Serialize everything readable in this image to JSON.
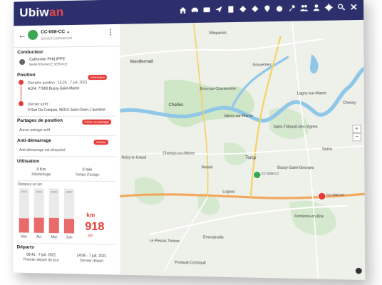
{
  "app": {
    "brand_main": "Ubiw",
    "brand_accent": "an"
  },
  "toolbar": {
    "icons": [
      "home-icon",
      "car-icon",
      "card-icon",
      "send-icon",
      "document-icon",
      "diamond-icon",
      "route-icon",
      "pin-icon",
      "alarm-icon",
      "wrench-icon",
      "users-icon",
      "person-icon",
      "gear-icon",
      "search-icon",
      "close-icon"
    ]
  },
  "vehicle": {
    "name": "CC-008-CC",
    "dropdown": "⌄",
    "service": "Service commercial"
  },
  "driver": {
    "heading": "Conducteur",
    "name": "Catherine PHILIPPE",
    "service": "MAINTENANCE SERVICE"
  },
  "position": {
    "heading": "Position",
    "history_button": "Historique",
    "last_label": "Dernière position : 15:26 - 7 juil. 2021",
    "last_address": "A104, 77600 Bussy-Saint-Martin",
    "stop_label": "Dernier arrêt :",
    "stop_address": "9 Rue Du Compas, 95310 Saint-Ouen-L'aumône"
  },
  "sharing": {
    "heading": "Partages de position",
    "button": "Créer un partage",
    "status": "Aucun partage actif"
  },
  "anti_start": {
    "heading": "Anti-démarrage",
    "badge": "Activer",
    "status": "Anti-démarrage est désactivé"
  },
  "usage": {
    "heading": "Utilisation",
    "km": "0 Km",
    "km_label": "Kilométrage",
    "min": "0 min",
    "min_label": "Temps d'usage"
  },
  "distance": {
    "label": "Distance en km",
    "bars": [
      {
        "month": "Mar",
        "value": "3021",
        "level": 0.32
      },
      {
        "month": "Avr",
        "value": "3343",
        "level": 0.34
      },
      {
        "month": "Mai",
        "value": "5353",
        "level": 0.34
      },
      {
        "month": "Juin",
        "value": "3857",
        "level": 0.32
      }
    ],
    "unit": "km",
    "current_value": "918",
    "current_month": "juil"
  },
  "departures": {
    "heading": "Départs",
    "first_time": "08:41 - 7 juil. 2021",
    "first_label": "Premier départ du jour",
    "last_time": "14:06 - 7 juil. 2021",
    "last_label": "Dernier départ"
  },
  "map": {
    "labels": {
      "montfermeil": "Montfermeil",
      "chelles": "Chelles",
      "brou": "Brou-sur-Chantereine",
      "vaires": "Vaires-sur-Marne",
      "torcy": "Torcy",
      "noisiel": "Noisiel",
      "champs": "Champs-sur-Marne",
      "lognes": "Lognes",
      "emerainville": "Emerainville",
      "plessis": "Le Plessis-Trévise",
      "pontault": "Pontault-Combault",
      "bussy": "Bussy-Saint-Georges",
      "stthibault": "Saint-Thibault-des-Vignes",
      "chessy": "Chessy",
      "ferrieres": "Ferrières-en-Brie",
      "gouvernes": "Gouvernes",
      "nogent": "Noisy-le-Grand",
      "lagny": "Lagny-sur-Marne",
      "serris": "Serris",
      "villeparisis": "Villeparisis",
      "marker1": "CC-008-CC",
      "marker2": "CC-008-CC"
    }
  }
}
